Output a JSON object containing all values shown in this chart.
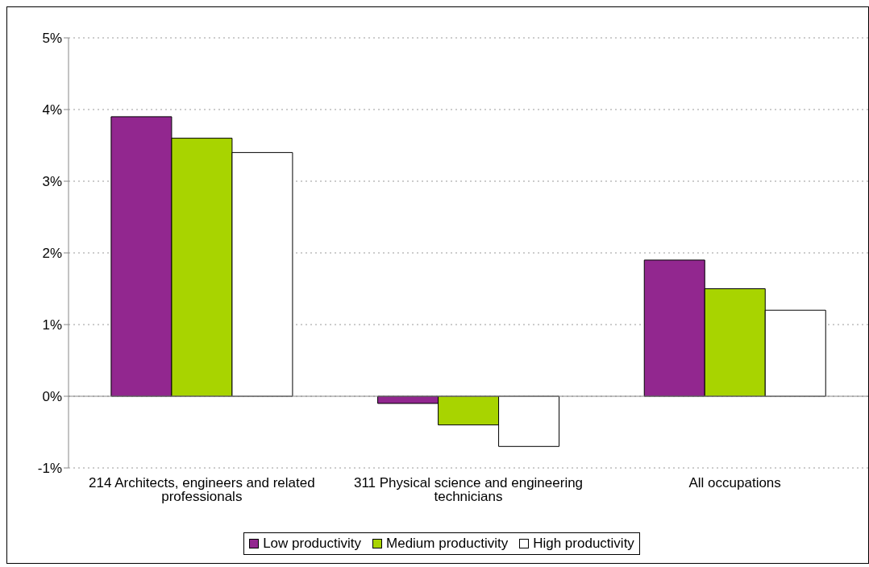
{
  "chart_data": {
    "type": "bar",
    "categories": [
      "214 Architects, engineers and related professionals",
      "311 Physical science and engineering technicians",
      "All occupations"
    ],
    "series": [
      {
        "name": "Low  productivity",
        "color": "#92278f",
        "values": [
          3.9,
          -0.1,
          1.9
        ]
      },
      {
        "name": "Medium productivity",
        "color": "#a8d400",
        "values": [
          3.6,
          -0.4,
          1.5
        ]
      },
      {
        "name": "High productivity",
        "color": "#ffffff",
        "values": [
          3.4,
          -0.7,
          1.2
        ]
      }
    ],
    "ylim": [
      -1,
      5
    ],
    "yticks": [
      {
        "value": -1,
        "label": "-1%"
      },
      {
        "value": 0,
        "label": "0%"
      },
      {
        "value": 1,
        "label": "1%"
      },
      {
        "value": 2,
        "label": "2%"
      },
      {
        "value": 3,
        "label": "3%"
      },
      {
        "value": 4,
        "label": "4%"
      },
      {
        "value": 5,
        "label": "5%"
      }
    ],
    "grid": "y",
    "legend": "bottom"
  }
}
